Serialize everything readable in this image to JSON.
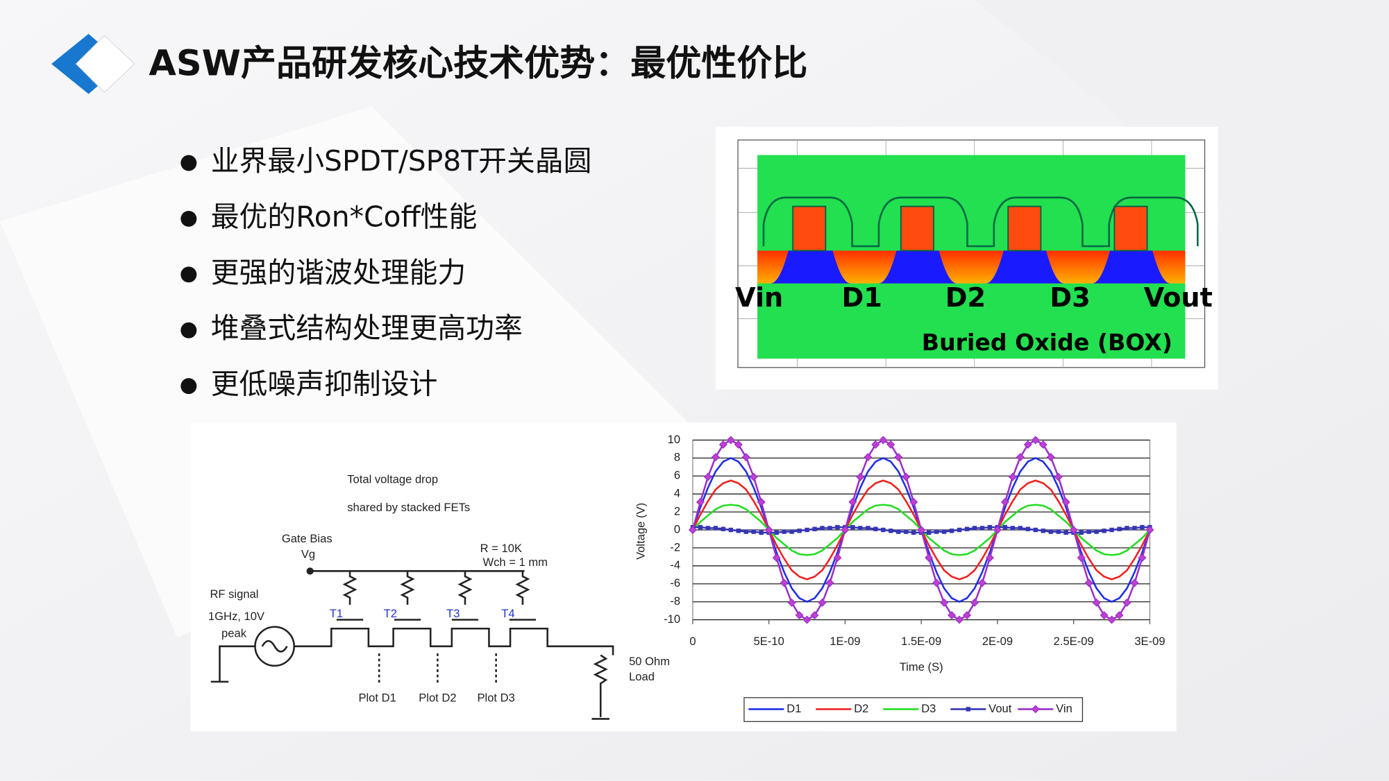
{
  "header": {
    "title": "ASW产品研发核心技术优势：最优性价比"
  },
  "bullets": [
    "业界最小SPDT/SP8T开关晶圆",
    "最优的Ron*Coff性能",
    "更强的谐波处理能力",
    "堆叠式结构处理更高功率",
    "更低噪声抑制设计"
  ],
  "cross_section": {
    "labels": [
      "Vin",
      "D1",
      "D2",
      "D3",
      "Vout"
    ],
    "box_label": "Buried Oxide (BOX)"
  },
  "circuit": {
    "caption": [
      "Total voltage drop",
      "shared by stacked FETs"
    ],
    "gate_bias": [
      "Gate Bias",
      "Vg"
    ],
    "resistor": [
      "R = 10K",
      "Wch = 1 mm"
    ],
    "source": [
      "RF signal",
      "1GHz, 10V",
      "peak"
    ],
    "fets": [
      "T1",
      "T2",
      "T3",
      "T4"
    ],
    "plots": [
      "Plot D1",
      "Plot D2",
      "Plot D3"
    ],
    "load": [
      "50 Ohm",
      "Load"
    ]
  },
  "chart_data": {
    "type": "line",
    "x_label": "Time (S)",
    "y_label": "Voltage (V)",
    "x": [
      0,
      5e-11,
      1e-10,
      1.5e-10,
      2e-10,
      2.5e-10,
      3e-10,
      3.5e-10,
      4e-10,
      4.5e-10,
      5e-10,
      5.5e-10,
      6e-10,
      6.5e-10,
      7e-10,
      7.5e-10,
      8e-10,
      8.5e-10,
      9e-10,
      9.5e-10,
      1e-09,
      1.05e-09,
      1.1e-09,
      1.15e-09,
      1.2e-09,
      1.25e-09,
      1.3e-09,
      1.35e-09,
      1.4e-09,
      1.45e-09,
      1.5e-09,
      1.55e-09,
      1.6e-09,
      1.65e-09,
      1.7e-09,
      1.75e-09,
      1.8e-09,
      1.85e-09,
      1.9e-09,
      1.95e-09,
      2e-09,
      2.05e-09,
      2.1e-09,
      2.15e-09,
      2.2e-09,
      2.25e-09,
      2.3e-09,
      2.35e-09,
      2.4e-09,
      2.45e-09,
      2.5e-09,
      2.55e-09,
      2.6e-09,
      2.65e-09,
      2.7e-09,
      2.75e-09,
      2.8e-09,
      2.85e-09,
      2.9e-09,
      2.95e-09,
      3e-09
    ],
    "xlim": [
      0,
      3e-09
    ],
    "xticks": [
      0,
      {
        "value": 5e-10,
        "label": "5E-10"
      },
      {
        "value": 1e-09,
        "label": "1E-09"
      },
      {
        "value": 1.5e-09,
        "label": "1.5E-09"
      },
      {
        "value": 2e-09,
        "label": "2E-09"
      },
      {
        "value": 2.5e-09,
        "label": "2.5E-09"
      },
      {
        "value": 3e-09,
        "label": "3E-09"
      }
    ],
    "ylim": [
      -10,
      10
    ],
    "yticks": [
      -10,
      -8,
      -6,
      -4,
      -2,
      0,
      2,
      4,
      6,
      8,
      10
    ],
    "grid": true,
    "series": [
      {
        "name": "D1",
        "color": "#1f2fe6",
        "marker": "none",
        "values": [
          0,
          2.5,
          4.7,
          6.5,
          7.6,
          8,
          7.6,
          6.5,
          4.7,
          2.5,
          0,
          -2.5,
          -4.7,
          -6.5,
          -7.6,
          -8,
          -7.6,
          -6.5,
          -4.7,
          -2.5,
          0,
          2.5,
          4.7,
          6.5,
          7.6,
          8,
          7.6,
          6.5,
          4.7,
          2.5,
          0,
          -2.5,
          -4.7,
          -6.5,
          -7.6,
          -8,
          -7.6,
          -6.5,
          -4.7,
          -2.5,
          0,
          2.5,
          4.7,
          6.5,
          7.6,
          8,
          7.6,
          6.5,
          4.7,
          2.5,
          0,
          -2.5,
          -4.7,
          -6.5,
          -7.6,
          -8,
          -7.6,
          -6.5,
          -4.7,
          -2.5,
          0
        ]
      },
      {
        "name": "D2",
        "color": "#f02020",
        "marker": "none",
        "values": [
          0,
          1.7,
          3.2,
          4.5,
          5.2,
          5.5,
          5.2,
          4.5,
          3.2,
          1.7,
          0,
          -1.7,
          -3.2,
          -4.5,
          -5.2,
          -5.5,
          -5.2,
          -4.5,
          -3.2,
          -1.7,
          0,
          1.7,
          3.2,
          4.5,
          5.2,
          5.5,
          5.2,
          4.5,
          3.2,
          1.7,
          0,
          -1.7,
          -3.2,
          -4.5,
          -5.2,
          -5.5,
          -5.2,
          -4.5,
          -3.2,
          -1.7,
          0,
          1.7,
          3.2,
          4.5,
          5.2,
          5.5,
          5.2,
          4.5,
          3.2,
          1.7,
          0,
          -1.7,
          -3.2,
          -4.5,
          -5.2,
          -5.5,
          -5.2,
          -4.5,
          -3.2,
          -1.7,
          0
        ]
      },
      {
        "name": "D3",
        "color": "#22dd22",
        "marker": "none",
        "values": [
          0,
          0.9,
          1.6,
          2.3,
          2.7,
          2.8,
          2.7,
          2.3,
          1.6,
          0.9,
          0,
          -0.9,
          -1.6,
          -2.3,
          -2.7,
          -2.8,
          -2.7,
          -2.3,
          -1.6,
          -0.9,
          0,
          0.9,
          1.6,
          2.3,
          2.7,
          2.8,
          2.7,
          2.3,
          1.6,
          0.9,
          0,
          -0.9,
          -1.6,
          -2.3,
          -2.7,
          -2.8,
          -2.7,
          -2.3,
          -1.6,
          -0.9,
          0,
          0.9,
          1.6,
          2.3,
          2.7,
          2.8,
          2.7,
          2.3,
          1.6,
          0.9,
          0,
          -0.9,
          -1.6,
          -2.3,
          -2.7,
          -2.8,
          -2.7,
          -2.3,
          -1.6,
          -0.9,
          0
        ]
      },
      {
        "name": "Vout",
        "color": "#3535b5",
        "marker": "square",
        "values": [
          0.3,
          0.3,
          0.2,
          0.2,
          0.1,
          0,
          -0.1,
          -0.2,
          -0.2,
          -0.3,
          -0.3,
          -0.3,
          -0.2,
          -0.2,
          -0.1,
          0,
          0.1,
          0.2,
          0.2,
          0.3,
          0.3,
          0.3,
          0.2,
          0.2,
          0.1,
          0,
          -0.1,
          -0.2,
          -0.2,
          -0.3,
          -0.3,
          -0.3,
          -0.2,
          -0.2,
          -0.1,
          0,
          0.1,
          0.2,
          0.2,
          0.3,
          0.3,
          0.3,
          0.2,
          0.2,
          0.1,
          0,
          -0.1,
          -0.2,
          -0.2,
          -0.3,
          -0.3,
          -0.3,
          -0.2,
          -0.2,
          -0.1,
          0,
          0.1,
          0.2,
          0.2,
          0.3,
          0.3
        ]
      },
      {
        "name": "Vin",
        "color": "#9b2fc9",
        "marker": "diamond",
        "values": [
          0,
          3.1,
          5.9,
          8.1,
          9.5,
          10,
          9.5,
          8.1,
          5.9,
          3.1,
          0,
          -3.1,
          -5.9,
          -8.1,
          -9.5,
          -10,
          -9.5,
          -8.1,
          -5.9,
          -3.1,
          0,
          3.1,
          5.9,
          8.1,
          9.5,
          10,
          9.5,
          8.1,
          5.9,
          3.1,
          0,
          -3.1,
          -5.9,
          -8.1,
          -9.5,
          -10,
          -9.5,
          -8.1,
          -5.9,
          -3.1,
          0,
          3.1,
          5.9,
          8.1,
          9.5,
          10,
          9.5,
          8.1,
          5.9,
          3.1,
          0,
          -3.1,
          -5.9,
          -8.1,
          -9.5,
          -10,
          -9.5,
          -8.1,
          -5.9,
          -3.1,
          0
        ]
      }
    ]
  }
}
